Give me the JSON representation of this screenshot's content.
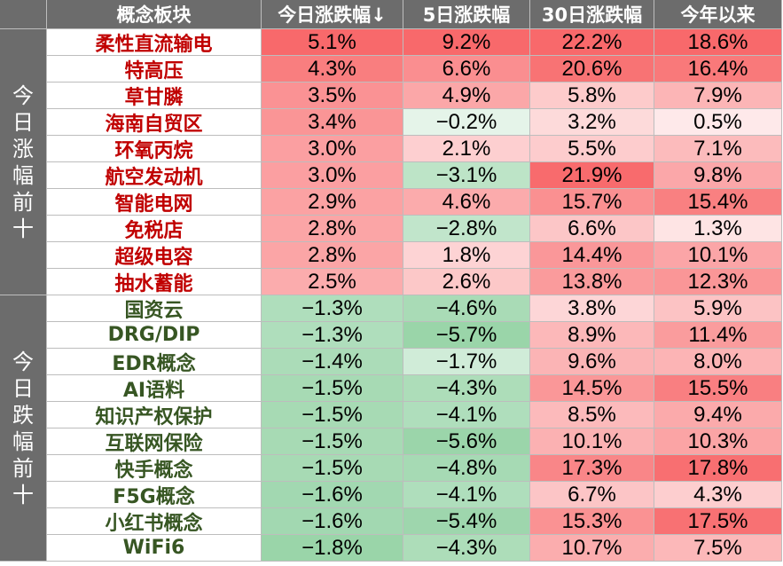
{
  "headers": [
    "概念板块",
    "今日涨跌幅↓",
    "5日涨跌幅",
    "30日涨跌幅",
    "今年以来"
  ],
  "groups": [
    {
      "label": "今日涨幅前十",
      "direction": "up"
    },
    {
      "label": "今日跌幅前十",
      "direction": "down"
    }
  ],
  "chart_data": {
    "type": "table",
    "columns": [
      "概念板块",
      "今日涨跌幅↓",
      "5日涨跌幅",
      "30日涨跌幅",
      "今年以来"
    ],
    "rows": [
      {
        "group": 0,
        "name": "柔性直流输电",
        "values": [
          "5.1%",
          "9.2%",
          "22.2%",
          "18.6%"
        ]
      },
      {
        "group": 0,
        "name": "特高压",
        "values": [
          "4.3%",
          "6.6%",
          "20.6%",
          "16.4%"
        ]
      },
      {
        "group": 0,
        "name": "草甘膦",
        "values": [
          "3.5%",
          "4.9%",
          "5.8%",
          "7.9%"
        ]
      },
      {
        "group": 0,
        "name": "海南自贸区",
        "values": [
          "3.4%",
          "−0.2%",
          "3.2%",
          "0.5%"
        ]
      },
      {
        "group": 0,
        "name": "环氧丙烷",
        "values": [
          "3.0%",
          "2.1%",
          "5.5%",
          "7.1%"
        ]
      },
      {
        "group": 0,
        "name": "航空发动机",
        "values": [
          "3.0%",
          "−3.1%",
          "21.9%",
          "9.8%"
        ]
      },
      {
        "group": 0,
        "name": "智能电网",
        "values": [
          "2.9%",
          "4.6%",
          "15.7%",
          "15.4%"
        ]
      },
      {
        "group": 0,
        "name": "免税店",
        "values": [
          "2.8%",
          "−2.8%",
          "6.6%",
          "1.3%"
        ]
      },
      {
        "group": 0,
        "name": "超级电容",
        "values": [
          "2.8%",
          "1.8%",
          "14.4%",
          "10.1%"
        ]
      },
      {
        "group": 0,
        "name": "抽水蓄能",
        "values": [
          "2.5%",
          "2.6%",
          "13.8%",
          "12.3%"
        ]
      },
      {
        "group": 1,
        "name": "国资云",
        "values": [
          "−1.3%",
          "−4.6%",
          "3.8%",
          "5.9%"
        ]
      },
      {
        "group": 1,
        "name": "DRG/DIP",
        "values": [
          "−1.3%",
          "−5.7%",
          "8.9%",
          "11.4%"
        ]
      },
      {
        "group": 1,
        "name": "EDR概念",
        "values": [
          "−1.4%",
          "−1.7%",
          "9.6%",
          "8.0%"
        ]
      },
      {
        "group": 1,
        "name": "AI语料",
        "values": [
          "−1.5%",
          "−4.3%",
          "14.5%",
          "15.5%"
        ]
      },
      {
        "group": 1,
        "name": "知识产权保护",
        "values": [
          "−1.5%",
          "−4.1%",
          "8.5%",
          "9.4%"
        ]
      },
      {
        "group": 1,
        "name": "互联网保险",
        "values": [
          "−1.5%",
          "−5.6%",
          "10.1%",
          "10.3%"
        ]
      },
      {
        "group": 1,
        "name": "快手概念",
        "values": [
          "−1.5%",
          "−4.8%",
          "17.3%",
          "17.8%"
        ]
      },
      {
        "group": 1,
        "name": "F5G概念",
        "values": [
          "−1.6%",
          "−4.1%",
          "6.7%",
          "4.3%"
        ]
      },
      {
        "group": 1,
        "name": "小红书概念",
        "values": [
          "−1.6%",
          "−5.4%",
          "15.3%",
          "17.5%"
        ]
      },
      {
        "group": 1,
        "name": "WiFi6",
        "values": [
          "−1.8%",
          "−4.3%",
          "10.7%",
          "7.5%"
        ]
      }
    ]
  },
  "colors": {
    "header_bg": "#6c6c6c",
    "header_text": "#ffffff",
    "up_text": "#c00000",
    "down_text": "#375623",
    "pos_strong": "#f8696b",
    "neg_strong": "#63be7b",
    "neutral": "#ffffff",
    "grid": "#bdbdbd"
  }
}
